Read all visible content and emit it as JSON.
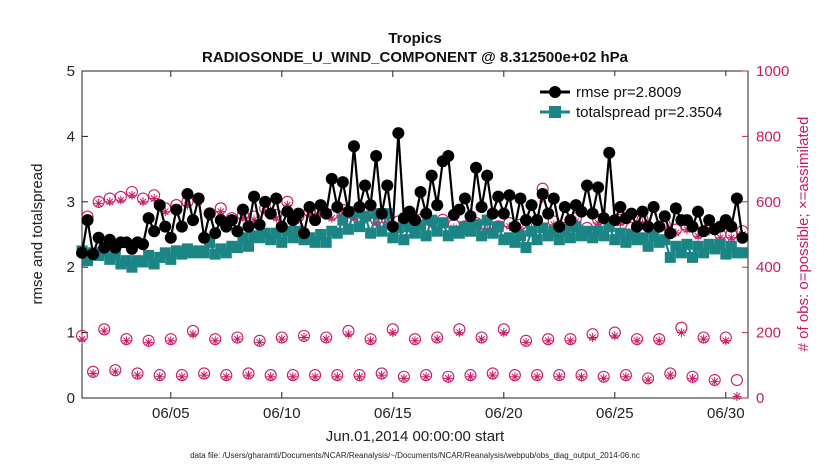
{
  "chart_data": {
    "type": "line",
    "title": "Tropics",
    "subtitle": "RADIOSONDE_U_WIND_COMPONENT @ 8.312500e+02 hPa",
    "xlabel": "Jun.01,2014 00:00:00 start",
    "ylabel": "rmse and totalspread",
    "ylabel_right": "# of obs: o=possible; ×=assimilated",
    "footnote": "data file: /Users/gharamti/Documents/NCAR/Reanalysis/~/Documents/NCAR/Reanalysis/webpub/obs_diag_output_2014-06.nc",
    "xlim": [
      1,
      31
    ],
    "ylim": [
      0,
      5
    ],
    "ylim_right": [
      0,
      1000
    ],
    "x_ticks": [
      5,
      10,
      15,
      20,
      25,
      30
    ],
    "x_tick_labels": [
      "06/05",
      "06/10",
      "06/15",
      "06/20",
      "06/25",
      "06/30"
    ],
    "y_ticks": [
      0,
      1,
      2,
      3,
      4,
      5
    ],
    "y_tick_labels": [
      "0",
      "1",
      "2",
      "3",
      "4",
      "5"
    ],
    "y_right_ticks": [
      0,
      200,
      400,
      600,
      800,
      1000
    ],
    "y_right_tick_labels": [
      "0",
      "200",
      "400",
      "600",
      "800",
      "1000"
    ],
    "colors": {
      "rmse": "#000000",
      "spread": "#1a8585",
      "obs": "#cc1a66"
    },
    "legend": {
      "location": "top-right",
      "entries": [
        "rmse pr=2.8009",
        "totalspread pr=2.3504"
      ]
    },
    "x": [
      1.0,
      1.25,
      1.5,
      1.75,
      2.0,
      2.25,
      2.5,
      2.75,
      3.0,
      3.25,
      3.5,
      3.75,
      4.0,
      4.25,
      4.5,
      4.75,
      5.0,
      5.25,
      5.5,
      5.75,
      6.0,
      6.25,
      6.5,
      6.75,
      7.0,
      7.25,
      7.5,
      7.75,
      8.0,
      8.25,
      8.5,
      8.75,
      9.0,
      9.25,
      9.5,
      9.75,
      10.0,
      10.25,
      10.5,
      10.75,
      11.0,
      11.25,
      11.5,
      11.75,
      12.0,
      12.25,
      12.5,
      12.75,
      13.0,
      13.25,
      13.5,
      13.75,
      14.0,
      14.25,
      14.5,
      14.75,
      15.0,
      15.25,
      15.5,
      15.75,
      16.0,
      16.25,
      16.5,
      16.75,
      17.0,
      17.25,
      17.5,
      17.75,
      18.0,
      18.25,
      18.5,
      18.75,
      19.0,
      19.25,
      19.5,
      19.75,
      20.0,
      20.25,
      20.5,
      20.75,
      21.0,
      21.25,
      21.5,
      21.75,
      22.0,
      22.25,
      22.5,
      22.75,
      23.0,
      23.25,
      23.5,
      23.75,
      24.0,
      24.25,
      24.5,
      24.75,
      25.0,
      25.25,
      25.5,
      25.75,
      26.0,
      26.25,
      26.5,
      26.75,
      27.0,
      27.25,
      27.5,
      27.75,
      28.0,
      28.25,
      28.5,
      28.75,
      29.0,
      29.25,
      29.5,
      29.75,
      30.0,
      30.25,
      30.5,
      30.75
    ],
    "series": [
      {
        "name": "rmse",
        "values": [
          2.22,
          2.72,
          2.2,
          2.45,
          2.3,
          2.42,
          2.3,
          2.38,
          2.38,
          2.28,
          2.38,
          2.35,
          2.75,
          2.55,
          2.95,
          2.62,
          2.45,
          2.88,
          2.62,
          3.12,
          2.72,
          3.05,
          2.45,
          2.82,
          2.52,
          2.72,
          2.62,
          2.72,
          2.55,
          2.88,
          2.62,
          3.08,
          2.65,
          3.0,
          2.82,
          3.05,
          2.62,
          2.85,
          2.72,
          2.82,
          2.52,
          2.92,
          2.72,
          2.95,
          2.82,
          3.35,
          2.92,
          3.3,
          2.85,
          3.85,
          2.92,
          3.25,
          2.95,
          3.7,
          2.82,
          3.25,
          2.62,
          4.05,
          2.75,
          2.85,
          2.72,
          3.15,
          2.82,
          3.4,
          2.95,
          3.62,
          3.7,
          2.8,
          2.88,
          3.05,
          2.78,
          3.52,
          2.92,
          3.4,
          2.82,
          3.08,
          2.82,
          3.1,
          2.62,
          3.05,
          2.72,
          2.95,
          2.72,
          3.12,
          2.82,
          3.05,
          2.62,
          2.92,
          2.72,
          2.95,
          2.85,
          3.25,
          2.82,
          3.22,
          2.75,
          3.75,
          2.72,
          2.92,
          2.75,
          2.82,
          2.62,
          2.85,
          2.62,
          2.92,
          2.62,
          2.78,
          2.52,
          2.9,
          2.72,
          2.72,
          2.62,
          2.85,
          2.55,
          2.72,
          2.58,
          2.62,
          2.72,
          2.62,
          3.05,
          2.45
        ]
      },
      {
        "name": "totalspread",
        "values": [
          2.25,
          2.1,
          2.22,
          2.18,
          2.25,
          2.12,
          2.2,
          2.05,
          2.1,
          2.0,
          2.1,
          2.08,
          2.18,
          2.05,
          2.15,
          2.22,
          2.12,
          2.25,
          2.2,
          2.28,
          2.22,
          2.25,
          2.22,
          2.38,
          2.2,
          2.28,
          2.22,
          2.32,
          2.3,
          2.45,
          2.32,
          2.48,
          2.45,
          2.52,
          2.42,
          2.52,
          2.38,
          2.55,
          2.45,
          2.55,
          2.42,
          2.45,
          2.38,
          2.5,
          2.38,
          2.55,
          2.52,
          2.72,
          2.58,
          2.85,
          2.62,
          2.78,
          2.52,
          2.82,
          2.55,
          2.82,
          2.45,
          2.6,
          2.42,
          2.62,
          2.52,
          2.65,
          2.48,
          2.72,
          2.55,
          2.68,
          2.48,
          2.55,
          2.52,
          2.62,
          2.55,
          2.65,
          2.48,
          2.72,
          2.52,
          2.62,
          2.42,
          2.45,
          2.38,
          2.48,
          2.3,
          2.55,
          2.42,
          2.6,
          2.48,
          2.55,
          2.42,
          2.58,
          2.45,
          2.62,
          2.48,
          2.55,
          2.45,
          2.55,
          2.48,
          2.62,
          2.42,
          2.52,
          2.38,
          2.5,
          2.42,
          2.45,
          2.32,
          2.48,
          2.38,
          2.42,
          2.15,
          2.32,
          2.22,
          2.35,
          2.15,
          2.32,
          2.22,
          2.35,
          2.28,
          2.35,
          2.2,
          2.32,
          2.22,
          2.22
        ]
      }
    ],
    "obs_possible": {
      "x": [
        1.0,
        1.25,
        1.5,
        1.75,
        2.0,
        2.25,
        2.5,
        2.75,
        3.0,
        3.25,
        3.5,
        3.75,
        4.0,
        4.25,
        4.5,
        4.75,
        5.0,
        5.25,
        5.5,
        5.75,
        6.0,
        6.25,
        6.5,
        6.75,
        7.0,
        7.25,
        7.5,
        7.75,
        8.0,
        8.25,
        8.5,
        8.75,
        9.0,
        9.25,
        9.5,
        9.75,
        10.0,
        10.25,
        10.5,
        10.75,
        11.0,
        11.25,
        11.5,
        11.75,
        12.0,
        12.25,
        12.5,
        12.75,
        13.0,
        13.25,
        13.5,
        13.75,
        14.0,
        14.25,
        14.5,
        14.75,
        15.0,
        15.25,
        15.5,
        15.75,
        16.0,
        16.25,
        16.5,
        16.75,
        17.0,
        17.25,
        17.5,
        17.75,
        18.0,
        18.25,
        18.5,
        18.75,
        19.0,
        19.25,
        19.5,
        19.75,
        20.0,
        20.25,
        20.5,
        20.75,
        21.0,
        21.25,
        21.5,
        21.75,
        22.0,
        22.25,
        22.5,
        22.75,
        23.0,
        23.25,
        23.5,
        23.75,
        24.0,
        24.25,
        24.5,
        24.75,
        25.0,
        25.25,
        25.5,
        25.75,
        26.0,
        26.25,
        26.5,
        26.75,
        27.0,
        27.25,
        27.5,
        27.75,
        28.0,
        28.25,
        28.5,
        28.75,
        29.0,
        29.25,
        29.5,
        29.75,
        30.0,
        30.25,
        30.5,
        30.75
      ],
      "values": [
        190,
        555,
        80,
        600,
        210,
        610,
        85,
        615,
        180,
        630,
        75,
        610,
        175,
        620,
        70,
        580,
        180,
        590,
        70,
        600,
        205,
        610,
        75,
        565,
        180,
        580,
        70,
        550,
        185,
        560,
        75,
        555,
        175,
        580,
        70,
        560,
        185,
        600,
        70,
        555,
        190,
        570,
        70,
        575,
        185,
        560,
        70,
        575,
        205,
        560,
        70,
        555,
        180,
        545,
        75,
        545,
        210,
        540,
        65,
        530,
        180,
        545,
        70,
        540,
        185,
        545,
        65,
        530,
        210,
        525,
        70,
        535,
        185,
        525,
        75,
        525,
        210,
        535,
        70,
        530,
        175,
        530,
        70,
        640,
        180,
        540,
        70,
        520,
        180,
        550,
        70,
        520,
        195,
        545,
        65,
        535,
        200,
        545,
        70,
        520,
        180,
        545,
        60,
        510,
        180,
        530,
        75,
        515,
        215,
        525,
        65,
        505,
        185,
        520,
        55,
        500,
        185,
        500,
        55,
        510
      ]
    },
    "obs_assimilated": {
      "x": [
        1.0,
        1.25,
        1.5,
        1.75,
        2.0,
        2.25,
        2.5,
        2.75,
        3.0,
        3.25,
        3.5,
        3.75,
        4.0,
        4.25,
        4.5,
        4.75,
        5.0,
        5.25,
        5.5,
        5.75,
        6.0,
        6.25,
        6.5,
        6.75,
        7.0,
        7.25,
        7.5,
        7.75,
        8.0,
        8.25,
        8.5,
        8.75,
        9.0,
        9.25,
        9.5,
        9.75,
        10.0,
        10.25,
        10.5,
        10.75,
        11.0,
        11.25,
        11.5,
        11.75,
        12.0,
        12.25,
        12.5,
        12.75,
        13.0,
        13.25,
        13.5,
        13.75,
        14.0,
        14.25,
        14.5,
        14.75,
        15.0,
        15.25,
        15.5,
        15.75,
        16.0,
        16.25,
        16.5,
        16.75,
        17.0,
        17.25,
        17.5,
        17.75,
        18.0,
        18.25,
        18.5,
        18.75,
        19.0,
        19.25,
        19.5,
        19.75,
        20.0,
        20.25,
        20.5,
        20.75,
        21.0,
        21.25,
        21.5,
        21.75,
        22.0,
        22.25,
        22.5,
        22.75,
        23.0,
        23.25,
        23.5,
        23.75,
        24.0,
        24.25,
        24.5,
        24.75,
        25.0,
        25.25,
        25.5,
        25.75,
        26.0,
        26.25,
        26.5,
        26.75,
        27.0,
        27.25,
        27.5,
        27.75,
        28.0,
        28.25,
        28.5,
        28.75,
        29.0,
        29.25,
        29.5,
        29.75,
        30.0,
        30.25,
        30.5,
        30.75
      ],
      "values": [
        180,
        540,
        75,
        595,
        205,
        600,
        80,
        605,
        175,
        620,
        70,
        600,
        170,
        610,
        65,
        570,
        175,
        580,
        65,
        590,
        195,
        600,
        70,
        555,
        175,
        570,
        65,
        540,
        180,
        550,
        70,
        545,
        170,
        570,
        65,
        550,
        180,
        590,
        65,
        545,
        185,
        560,
        65,
        565,
        180,
        550,
        65,
        565,
        195,
        550,
        65,
        545,
        175,
        535,
        70,
        535,
        200,
        530,
        60,
        520,
        175,
        535,
        65,
        530,
        180,
        535,
        60,
        520,
        200,
        515,
        65,
        525,
        180,
        515,
        70,
        515,
        200,
        525,
        65,
        520,
        170,
        520,
        65,
        610,
        175,
        530,
        65,
        510,
        175,
        540,
        65,
        510,
        185,
        535,
        60,
        525,
        190,
        535,
        65,
        510,
        175,
        535,
        55,
        500,
        175,
        520,
        70,
        505,
        200,
        515,
        60,
        495,
        180,
        510,
        50,
        490,
        175,
        490,
        5,
        500
      ]
    }
  }
}
